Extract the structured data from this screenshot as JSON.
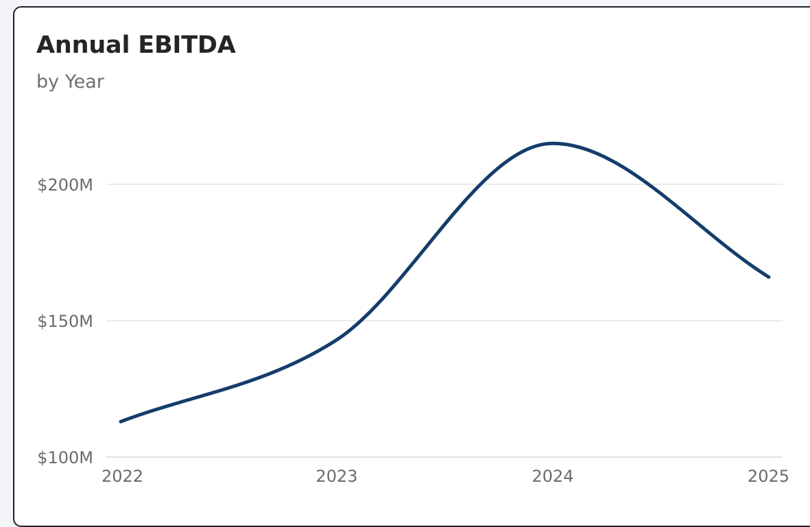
{
  "card": {
    "title": "Annual EBITDA",
    "subtitle": "by Year"
  },
  "chart_data": {
    "type": "line",
    "title": "Annual EBITDA",
    "subtitle": "by Year",
    "xlabel": "",
    "ylabel": "",
    "x": [
      "2022",
      "2023",
      "2024",
      "2025"
    ],
    "series": [
      {
        "values": [
          113,
          143,
          215,
          166
        ]
      }
    ],
    "y_ticks": [
      100,
      150,
      200
    ],
    "y_tick_labels": [
      "$100M",
      "$150M",
      "$200M"
    ],
    "ylim": [
      100,
      230
    ],
    "curve": "smooth",
    "grid": true,
    "legend": "none",
    "colors": {
      "line": "#143d6b",
      "grid": "#ebebeb",
      "axis": "#e3e3e3"
    }
  }
}
